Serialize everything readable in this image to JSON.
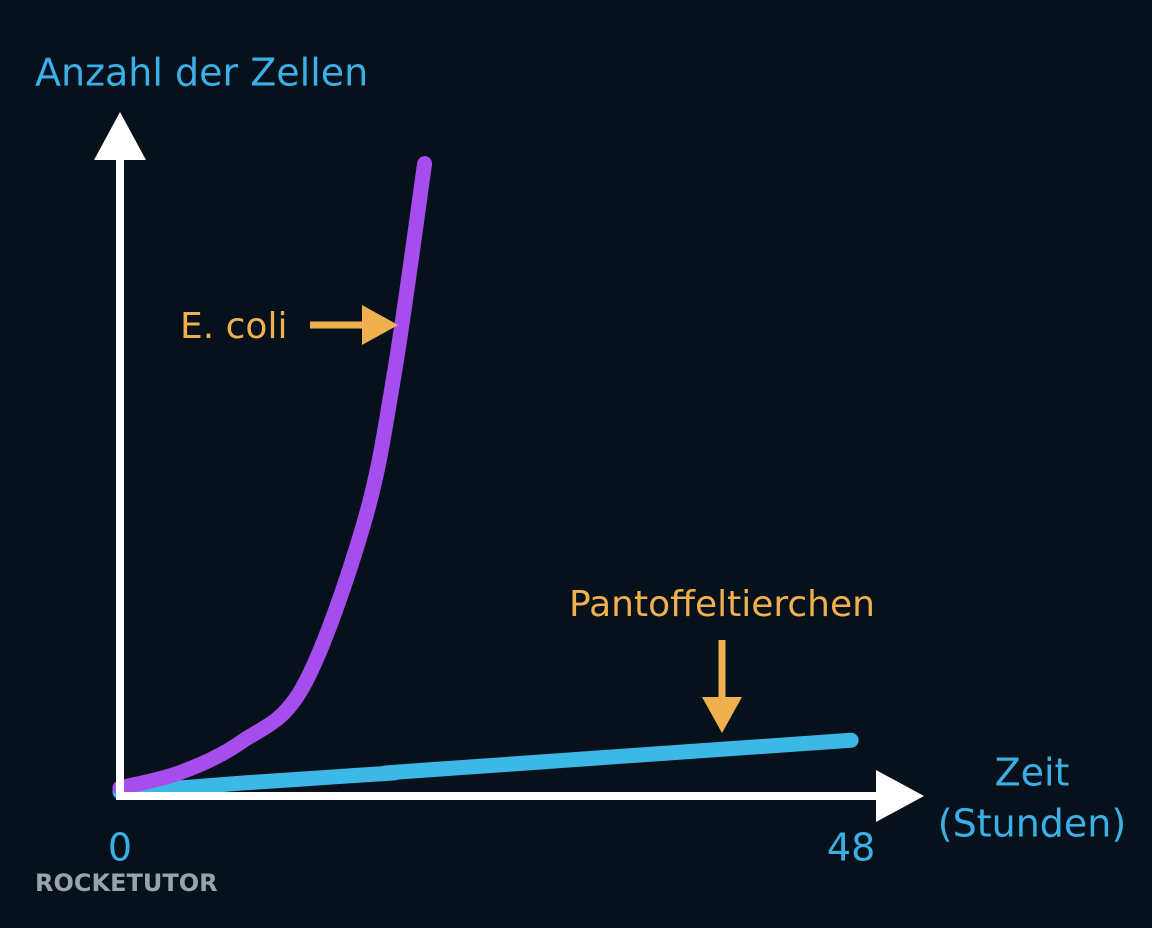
{
  "chart_data": {
    "type": "line",
    "ylabel": "Anzahl der Zellen",
    "xlabel": [
      "Zeit",
      "(Stunden)"
    ],
    "x": [
      0,
      4,
      8,
      12,
      16,
      18,
      20,
      48
    ],
    "xlim": [
      0,
      52
    ],
    "xticks": [
      0,
      48
    ],
    "ylim": [
      0,
      100
    ],
    "series": [
      {
        "name": "E. coli",
        "color": "#a64ded",
        "values": [
          1.2,
          3.5,
          8,
          16,
          40,
          62,
          93,
          null
        ]
      },
      {
        "name": "Pantoffeltierchen",
        "color": "#3bb8e6",
        "values": [
          0.6,
          1.2,
          1.9,
          2.5,
          3.1,
          3.4,
          3.8,
          8.2
        ]
      }
    ],
    "watermark": "ROCKETUTOR"
  }
}
